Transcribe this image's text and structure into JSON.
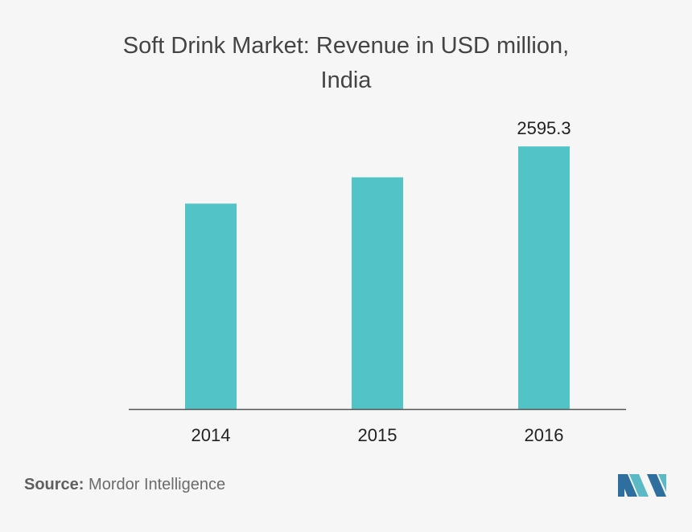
{
  "chart_data": {
    "type": "bar",
    "title": "Soft Drink Market: Revenue in USD million, India",
    "categories": [
      "2014",
      "2015",
      "2016"
    ],
    "values": [
      2030,
      2290,
      2595.3
    ],
    "data_labels": [
      "",
      "",
      "2595.3"
    ],
    "xlabel": "",
    "ylabel": "",
    "ylim": [
      0,
      2700
    ],
    "grid": false,
    "legend": "none",
    "bar_color": "#52c4c7",
    "axis_color": "#555555"
  },
  "source": {
    "label": "Source:",
    "text": "Mordor Intelligence"
  },
  "logo": {
    "icon": "mordor-intelligence-logo",
    "colors": [
      "#2f6f9f",
      "#5ab9c4"
    ]
  }
}
